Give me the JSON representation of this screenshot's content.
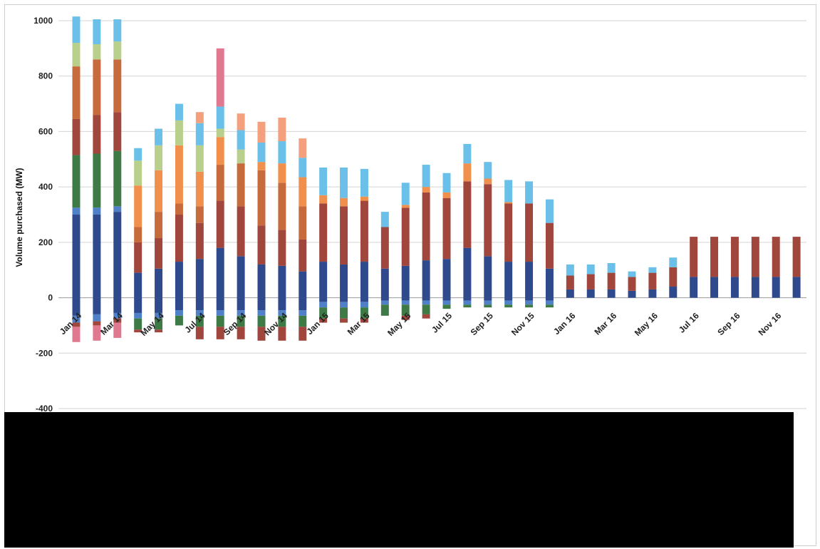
{
  "chart_data": {
    "type": "bar",
    "stacked": true,
    "title": "",
    "xlabel": "",
    "ylabel": "Volume purchased (MW)",
    "ylim": [
      -400,
      1000
    ],
    "yticks": [
      "1000",
      "800",
      "600",
      "400",
      "200",
      "0",
      "-200",
      "-400"
    ],
    "grid": true,
    "categories": [
      "Jan 14",
      "Feb 14",
      "Mar 14",
      "Apr 14",
      "May 14",
      "Jun 14",
      "Jul 14",
      "Aug 14",
      "Sep 14",
      "Oct 14",
      "Nov 14",
      "Dec 14",
      "Jan 15",
      "Feb 15",
      "Mar 15",
      "Apr 15",
      "May 15",
      "Jun 15",
      "Jul 15",
      "Aug 15",
      "Sep 15",
      "Oct 15",
      "Nov 15",
      "Dec 15",
      "Jan 16",
      "Feb 16",
      "Mar 16",
      "Apr 16",
      "May 16",
      "Jun 16",
      "Jul 16",
      "Aug 16",
      "Sep 16",
      "Oct 16",
      "Nov 16",
      "Dec 16"
    ],
    "tick_labels": [
      "Jan 14",
      "Mar 14",
      "May 14",
      "Jul 14",
      "Sep 14",
      "Nov 14",
      "Jan 15",
      "Mar 15",
      "May 15",
      "Jul 15",
      "Sep 15",
      "Nov 15",
      "Jan 16",
      "Mar 16",
      "May 16",
      "Jul 16",
      "Sep 16",
      "Nov 16"
    ],
    "series_colors": [
      "#2e4a8c",
      "#4f80c8",
      "#3e7a45",
      "#5a8f4e",
      "#a0463c",
      "#c86b3c",
      "#f0904c",
      "#b8d08c",
      "#6ac0e8",
      "#f4a07c",
      "#e07890"
    ],
    "series": [
      {
        "values": [
          300,
          300,
          310,
          90,
          105,
          130,
          140,
          180,
          150,
          120,
          115,
          95,
          130,
          120,
          130,
          105,
          115,
          135,
          140,
          180,
          150,
          130,
          130,
          105,
          30,
          30,
          30,
          25,
          30,
          40,
          75,
          75,
          75,
          75,
          75,
          75
        ]
      },
      {
        "values": [
          25,
          25,
          20,
          0,
          0,
          0,
          0,
          0,
          0,
          0,
          0,
          0,
          0,
          0,
          0,
          0,
          0,
          0,
          0,
          0,
          0,
          0,
          0,
          0,
          0,
          0,
          0,
          0,
          0,
          0,
          0,
          0,
          0,
          0,
          0,
          0
        ]
      },
      {
        "values": [
          190,
          195,
          200,
          0,
          0,
          0,
          0,
          0,
          0,
          0,
          0,
          0,
          0,
          0,
          0,
          0,
          0,
          0,
          0,
          0,
          0,
          0,
          0,
          0,
          0,
          0,
          0,
          0,
          0,
          0,
          0,
          0,
          0,
          0,
          0,
          0
        ]
      },
      {
        "values": [
          0,
          0,
          0,
          0,
          0,
          0,
          0,
          0,
          0,
          0,
          0,
          0,
          0,
          0,
          0,
          0,
          0,
          0,
          0,
          0,
          0,
          0,
          0,
          0,
          0,
          0,
          0,
          0,
          0,
          0,
          0,
          0,
          0,
          0,
          0,
          0
        ]
      },
      {
        "values": [
          130,
          140,
          140,
          110,
          110,
          170,
          130,
          170,
          180,
          140,
          130,
          115,
          210,
          210,
          220,
          150,
          210,
          245,
          220,
          240,
          260,
          210,
          210,
          165,
          50,
          55,
          60,
          50,
          60,
          70,
          145,
          145,
          145,
          145,
          145,
          145
        ]
      },
      {
        "values": [
          190,
          200,
          190,
          55,
          95,
          40,
          60,
          130,
          155,
          200,
          170,
          120,
          0,
          0,
          0,
          0,
          0,
          0,
          0,
          0,
          0,
          0,
          0,
          0,
          0,
          0,
          0,
          0,
          0,
          0,
          0,
          0,
          0,
          0,
          0,
          0
        ]
      },
      {
        "values": [
          0,
          0,
          0,
          150,
          150,
          210,
          125,
          100,
          0,
          30,
          70,
          105,
          30,
          30,
          15,
          0,
          10,
          20,
          20,
          65,
          20,
          5,
          0,
          0,
          0,
          0,
          0,
          0,
          0,
          0,
          0,
          0,
          0,
          0,
          0,
          0
        ]
      },
      {
        "values": [
          85,
          55,
          65,
          90,
          90,
          90,
          95,
          30,
          50,
          0,
          0,
          0,
          0,
          0,
          0,
          0,
          0,
          0,
          0,
          0,
          0,
          0,
          0,
          0,
          0,
          0,
          0,
          0,
          0,
          0,
          0,
          0,
          0,
          0,
          0,
          0
        ]
      },
      {
        "values": [
          95,
          90,
          80,
          45,
          60,
          60,
          80,
          80,
          70,
          70,
          80,
          70,
          100,
          110,
          100,
          55,
          80,
          80,
          70,
          70,
          60,
          80,
          80,
          85,
          40,
          35,
          35,
          20,
          20,
          35,
          0,
          0,
          0,
          0,
          0,
          0
        ]
      },
      {
        "values": [
          0,
          0,
          0,
          0,
          0,
          0,
          40,
          0,
          60,
          75,
          85,
          70,
          0,
          0,
          0,
          0,
          0,
          0,
          0,
          0,
          0,
          0,
          0,
          0,
          0,
          0,
          0,
          0,
          0,
          0,
          0,
          0,
          0,
          0,
          0,
          0
        ]
      },
      {
        "values": [
          0,
          0,
          0,
          0,
          0,
          0,
          0,
          210,
          0,
          0,
          0,
          0,
          0,
          0,
          0,
          0,
          0,
          0,
          0,
          0,
          0,
          0,
          0,
          0,
          0,
          0,
          0,
          0,
          0,
          0,
          0,
          0,
          0,
          0,
          0,
          0
        ]
      }
    ],
    "negative_series": [
      {
        "values": [
          -65,
          -60,
          -55,
          -55,
          -55,
          -45,
          -45,
          -45,
          -45,
          -45,
          -45,
          -45,
          -15,
          -15,
          -15,
          -10,
          -10,
          -10,
          -10,
          -10,
          -10,
          -10,
          -10,
          -10,
          0,
          0,
          0,
          0,
          0,
          0,
          0,
          0,
          0,
          0,
          0,
          0
        ]
      },
      {
        "values": [
          -25,
          -25,
          -20,
          -20,
          -20,
          -20,
          -20,
          -20,
          -20,
          -20,
          -20,
          -20,
          -20,
          -20,
          -20,
          -15,
          -15,
          -15,
          -15,
          -15,
          -15,
          -15,
          -15,
          -15,
          0,
          0,
          0,
          0,
          0,
          0,
          0,
          0,
          0,
          0,
          0,
          0
        ]
      },
      {
        "values": [
          0,
          0,
          0,
          -40,
          -40,
          -35,
          -40,
          -40,
          -40,
          -40,
          -40,
          -40,
          -40,
          -40,
          -40,
          -40,
          -40,
          -35,
          -15,
          -10,
          -10,
          -10,
          -10,
          -10,
          0,
          0,
          0,
          0,
          0,
          0,
          0,
          0,
          0,
          0,
          0,
          0
        ]
      },
      {
        "values": [
          -15,
          -15,
          -15,
          -10,
          -10,
          0,
          -45,
          -45,
          -45,
          -50,
          -50,
          -50,
          -15,
          -15,
          -15,
          0,
          -15,
          -15,
          0,
          0,
          0,
          0,
          0,
          0,
          0,
          0,
          0,
          0,
          0,
          0,
          0,
          0,
          0,
          0,
          0,
          0
        ]
      },
      {
        "values": [
          -55,
          -55,
          -55,
          0,
          0,
          0,
          0,
          0,
          0,
          0,
          0,
          0,
          0,
          0,
          0,
          0,
          0,
          0,
          0,
          0,
          0,
          0,
          0,
          0,
          0,
          0,
          0,
          0,
          0,
          0,
          0,
          0,
          0,
          0,
          0,
          0
        ]
      }
    ],
    "negative_colors": [
      "#2e4a8c",
      "#4f80c8",
      "#3e7a45",
      "#a0463c",
      "#e07890"
    ]
  }
}
